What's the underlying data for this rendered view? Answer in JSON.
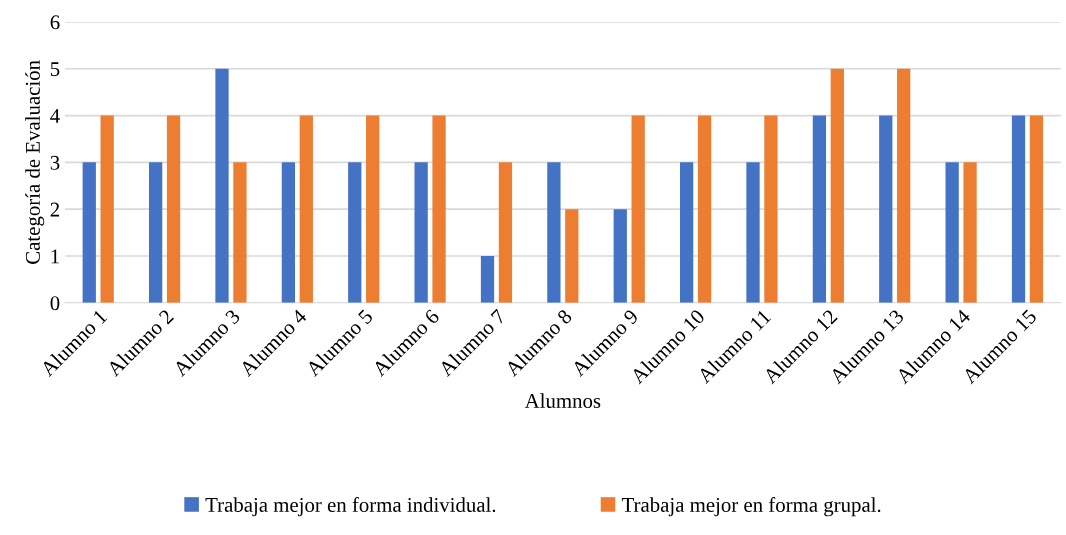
{
  "chart_data": {
    "type": "bar",
    "xlabel": "Alumnos",
    "ylabel": "Categoría de Evaluación",
    "categories": [
      "Alumno 1",
      "Alumno 2",
      "Alumno 3",
      "Alumno 4",
      "Alumno 5",
      "Alumno 6",
      "Alumno 7",
      "Alumno 8",
      "Alumno 9",
      "Alumno 10",
      "Alumno 11",
      "Alumno 12",
      "Alumno 13",
      "Alumno 14",
      "Alumno 15"
    ],
    "series": [
      {
        "name": "Trabaja mejor en forma individual.",
        "color": "#4472c4",
        "values": [
          3,
          3,
          5,
          3,
          3,
          3,
          1,
          3,
          2,
          3,
          3,
          4,
          4,
          3,
          4
        ]
      },
      {
        "name": "Trabaja mejor en forma grupal.",
        "color": "#ed7d31",
        "values": [
          4,
          4,
          3,
          4,
          4,
          4,
          3,
          2,
          4,
          4,
          4,
          5,
          5,
          3,
          4
        ]
      }
    ],
    "ylim": [
      0,
      6
    ],
    "yticks": [
      0,
      1,
      2,
      3,
      4,
      5,
      6
    ],
    "grid": "y",
    "legend": "bottom"
  }
}
